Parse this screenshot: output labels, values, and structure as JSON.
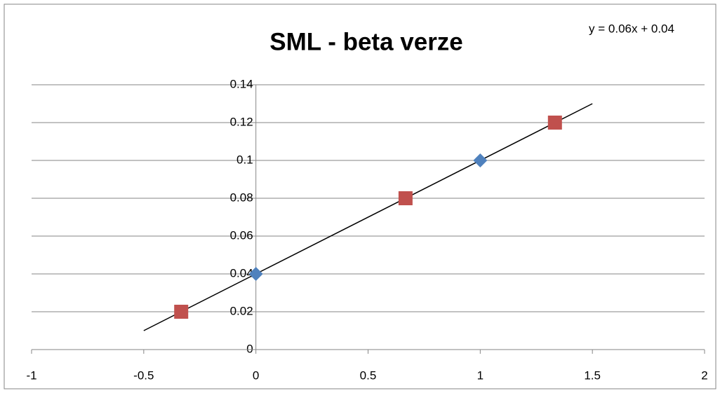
{
  "chart_data": {
    "type": "scatter",
    "title": "SML - beta verze",
    "annotation": "y = 0.06x + 0.04",
    "series": [
      {
        "color": "#4f81bd",
        "marker": "diamond",
        "x": [
          0,
          1
        ],
        "values": [
          0.04,
          0.1
        ]
      },
      {
        "color": "#c0504d",
        "marker": "square",
        "x": [
          -0.333,
          0.667,
          1.333
        ],
        "values": [
          0.02,
          0.08,
          0.12
        ]
      }
    ],
    "trendline": {
      "color": "#000000",
      "x": [
        -0.5,
        1.5
      ],
      "values": [
        0.01,
        0.13
      ]
    },
    "xlim": [
      -1,
      2
    ],
    "xticks": [
      -1,
      -0.5,
      0,
      0.5,
      1,
      1.5,
      2
    ],
    "ylim": [
      0,
      0.14
    ],
    "yticks": [
      0,
      0.02,
      0.04,
      0.06,
      0.08,
      0.1,
      0.12,
      0.14
    ],
    "grid": true
  }
}
